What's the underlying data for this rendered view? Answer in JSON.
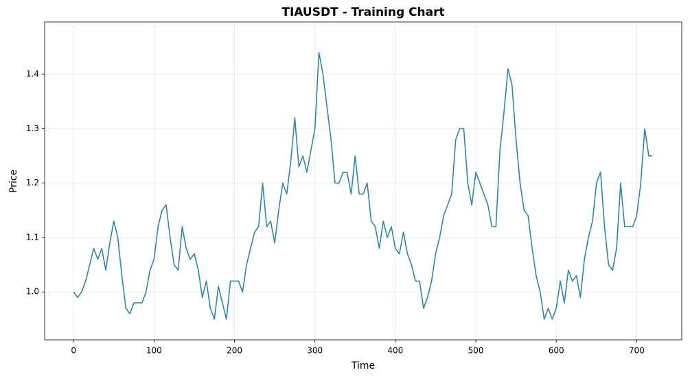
{
  "chart_data": {
    "type": "line",
    "title": "TIAUSDT - Training Chart",
    "xlabel": "Time",
    "ylabel": "Price",
    "x": [
      0,
      5,
      10,
      15,
      20,
      25,
      30,
      35,
      40,
      45,
      50,
      55,
      60,
      65,
      70,
      75,
      80,
      85,
      90,
      95,
      100,
      105,
      110,
      115,
      120,
      125,
      130,
      135,
      140,
      145,
      150,
      155,
      160,
      165,
      170,
      175,
      180,
      185,
      190,
      195,
      200,
      205,
      210,
      215,
      220,
      225,
      230,
      235,
      240,
      245,
      250,
      255,
      260,
      265,
      270,
      275,
      280,
      285,
      290,
      295,
      300,
      305,
      310,
      315,
      320,
      325,
      330,
      335,
      340,
      345,
      350,
      355,
      360,
      365,
      370,
      375,
      380,
      385,
      390,
      395,
      400,
      405,
      410,
      415,
      420,
      425,
      430,
      435,
      440,
      445,
      450,
      455,
      460,
      465,
      470,
      475,
      480,
      485,
      490,
      495,
      500,
      505,
      510,
      515,
      520,
      525,
      530,
      535,
      540,
      545,
      550,
      555,
      560,
      565,
      570,
      575,
      580,
      585,
      590,
      595,
      600,
      605,
      610,
      615,
      620,
      625,
      630,
      635,
      640,
      645,
      650,
      655,
      660,
      665,
      670,
      675,
      680,
      685,
      690,
      695,
      700,
      705,
      710,
      715,
      719
    ],
    "values": [
      1.0,
      0.99,
      1.0,
      1.02,
      1.05,
      1.08,
      1.06,
      1.08,
      1.04,
      1.09,
      1.13,
      1.1,
      1.03,
      0.97,
      0.96,
      0.98,
      0.98,
      0.98,
      1.0,
      1.04,
      1.06,
      1.12,
      1.15,
      1.16,
      1.1,
      1.05,
      1.04,
      1.12,
      1.08,
      1.06,
      1.07,
      1.04,
      0.99,
      1.02,
      0.97,
      0.95,
      1.01,
      0.98,
      0.95,
      1.02,
      1.02,
      1.02,
      1.0,
      1.05,
      1.08,
      1.11,
      1.12,
      1.2,
      1.12,
      1.13,
      1.09,
      1.15,
      1.2,
      1.18,
      1.24,
      1.32,
      1.23,
      1.25,
      1.22,
      1.26,
      1.3,
      1.44,
      1.4,
      1.34,
      1.28,
      1.2,
      1.2,
      1.22,
      1.22,
      1.18,
      1.25,
      1.18,
      1.18,
      1.2,
      1.13,
      1.12,
      1.08,
      1.13,
      1.1,
      1.12,
      1.08,
      1.07,
      1.11,
      1.07,
      1.05,
      1.02,
      1.02,
      0.97,
      0.99,
      1.02,
      1.07,
      1.1,
      1.14,
      1.16,
      1.18,
      1.28,
      1.3,
      1.3,
      1.2,
      1.16,
      1.22,
      1.2,
      1.18,
      1.16,
      1.12,
      1.12,
      1.26,
      1.33,
      1.41,
      1.38,
      1.28,
      1.2,
      1.15,
      1.14,
      1.08,
      1.03,
      1.0,
      0.95,
      0.97,
      0.95,
      0.97,
      1.02,
      0.98,
      1.04,
      1.02,
      1.03,
      0.99,
      1.06,
      1.1,
      1.13,
      1.2,
      1.22,
      1.12,
      1.05,
      1.04,
      1.08,
      1.2,
      1.12,
      1.12,
      1.12,
      1.14,
      1.2,
      1.3,
      1.25,
      1.25
    ],
    "color": "#2e86ab",
    "xlim": [
      -36,
      756
    ],
    "ylim": [
      0.912,
      1.496
    ],
    "xticks": [
      0,
      100,
      200,
      300,
      400,
      500,
      600,
      700
    ],
    "yticks": [
      {
        "value": 1,
        "label": "1.0"
      },
      1.1,
      1.2,
      1.3,
      1.4
    ],
    "grid": true
  }
}
